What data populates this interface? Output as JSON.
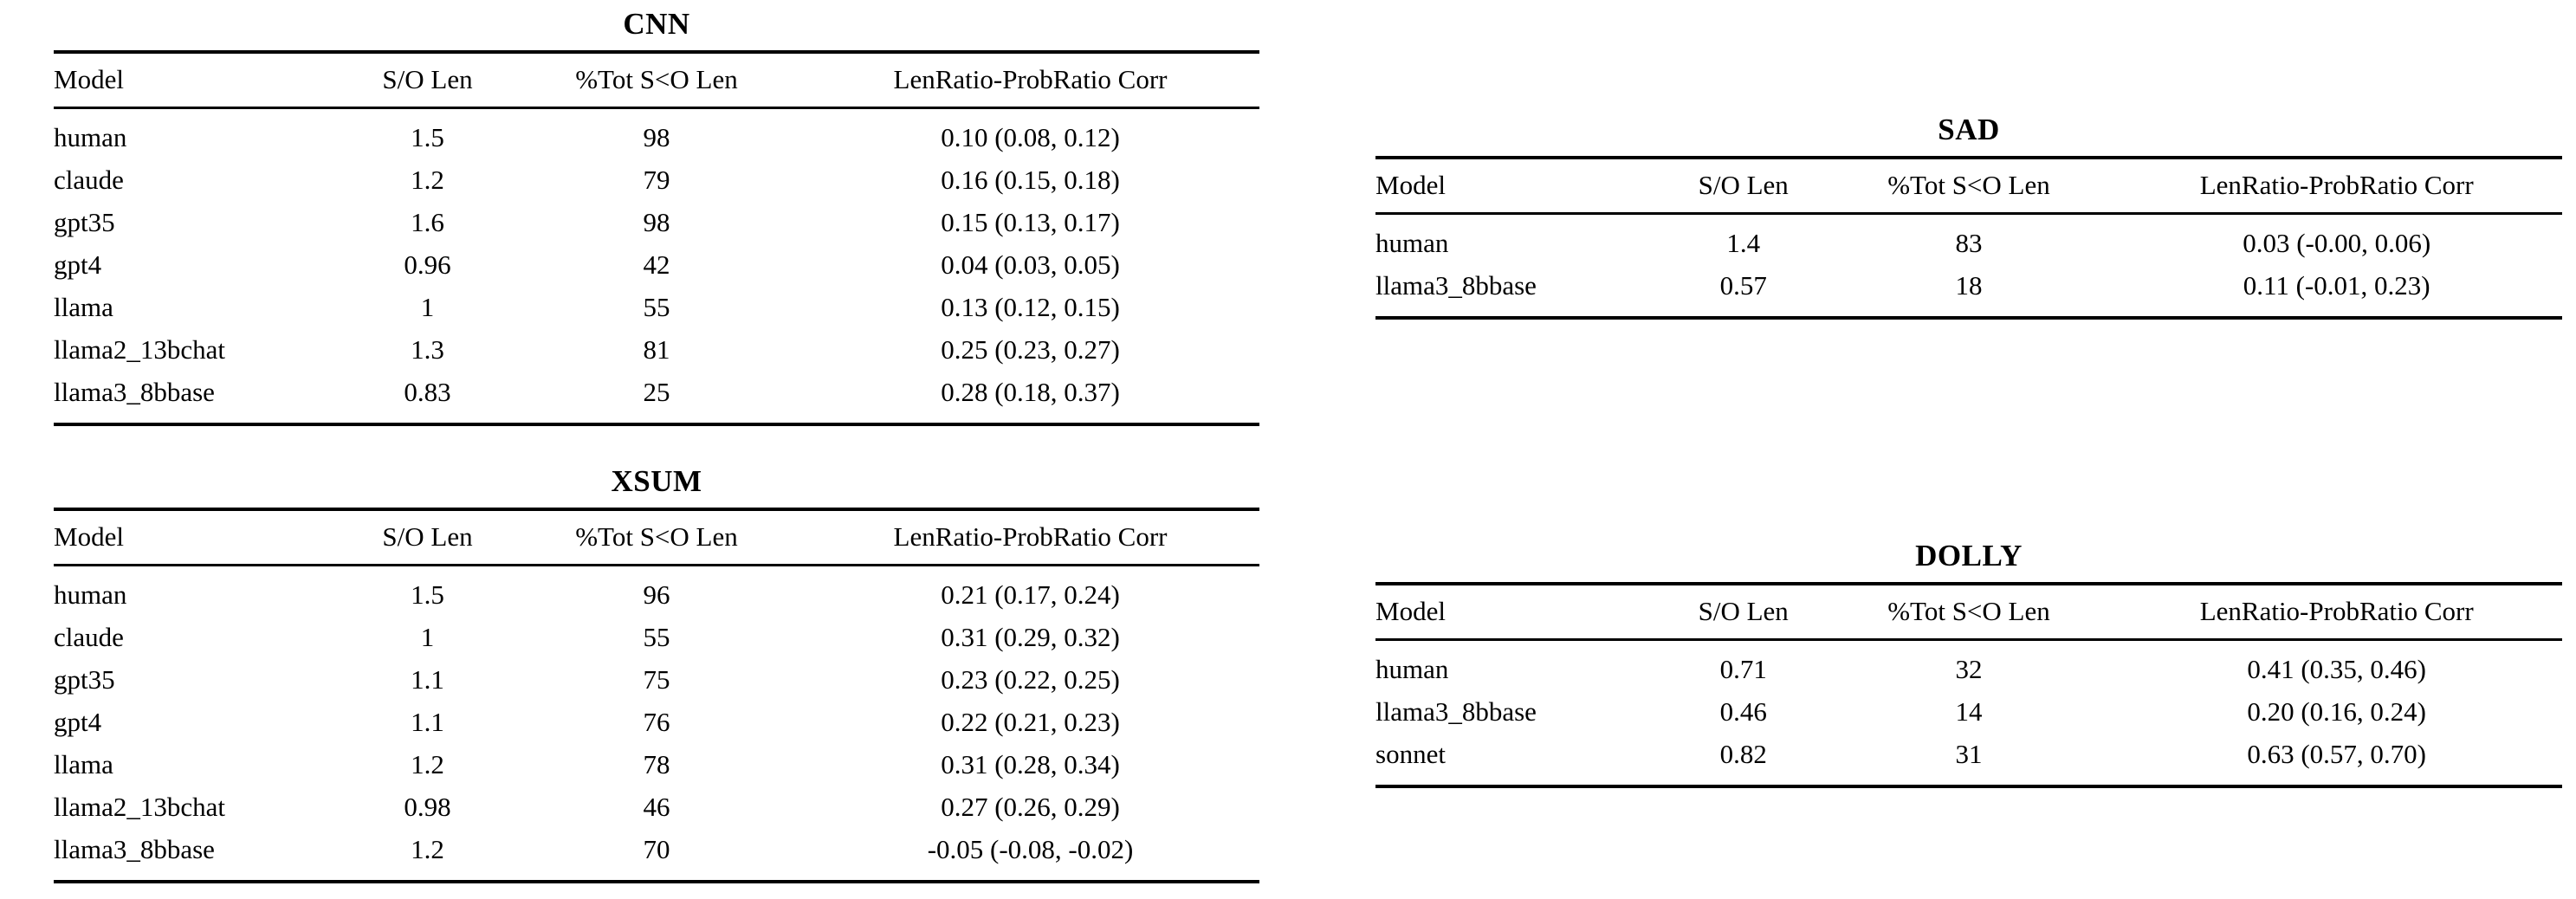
{
  "page": {
    "background_color": "#ffffff",
    "text_color": "#000000",
    "rule_color": "#000000"
  },
  "columns": [
    "Model",
    "S/O Len",
    "%Tot S<O Len",
    "LenRatio-ProbRatio Corr"
  ],
  "tables": [
    {
      "id": "cnn",
      "title": "CNN",
      "columns": [
        "Model",
        "S/O Len",
        "%Tot S<O Len",
        "LenRatio-ProbRatio Corr"
      ],
      "rows": [
        [
          "human",
          "1.5",
          "98",
          "0.10 (0.08, 0.12)"
        ],
        [
          "claude",
          "1.2",
          "79",
          "0.16 (0.15, 0.18)"
        ],
        [
          "gpt35",
          "1.6",
          "98",
          "0.15 (0.13, 0.17)"
        ],
        [
          "gpt4",
          "0.96",
          "42",
          "0.04 (0.03, 0.05)"
        ],
        [
          "llama",
          "1",
          "55",
          "0.13 (0.12, 0.15)"
        ],
        [
          "llama2_13bchat",
          "1.3",
          "81",
          "0.25 (0.23, 0.27)"
        ],
        [
          "llama3_8bbase",
          "0.83",
          "25",
          "0.28 (0.18, 0.37)"
        ]
      ]
    },
    {
      "id": "xsum",
      "title": "XSUM",
      "columns": [
        "Model",
        "S/O Len",
        "%Tot S<O Len",
        "LenRatio-ProbRatio Corr"
      ],
      "rows": [
        [
          "human",
          "1.5",
          "96",
          "0.21 (0.17, 0.24)"
        ],
        [
          "claude",
          "1",
          "55",
          "0.31 (0.29, 0.32)"
        ],
        [
          "gpt35",
          "1.1",
          "75",
          "0.23 (0.22, 0.25)"
        ],
        [
          "gpt4",
          "1.1",
          "76",
          "0.22 (0.21, 0.23)"
        ],
        [
          "llama",
          "1.2",
          "78",
          "0.31 (0.28, 0.34)"
        ],
        [
          "llama2_13bchat",
          "0.98",
          "46",
          "0.27 (0.26, 0.29)"
        ],
        [
          "llama3_8bbase",
          "1.2",
          "70",
          "-0.05 (-0.08, -0.02)"
        ]
      ]
    },
    {
      "id": "sad",
      "title": "SAD",
      "columns": [
        "Model",
        "S/O Len",
        "%Tot S<O Len",
        "LenRatio-ProbRatio Corr"
      ],
      "rows": [
        [
          "human",
          "1.4",
          "83",
          "0.03 (-0.00, 0.06)"
        ],
        [
          "llama3_8bbase",
          "0.57",
          "18",
          "0.11 (-0.01, 0.23)"
        ]
      ]
    },
    {
      "id": "dolly",
      "title": "DOLLY",
      "columns": [
        "Model",
        "S/O Len",
        "%Tot S<O Len",
        "LenRatio-ProbRatio Corr"
      ],
      "rows": [
        [
          "human",
          "0.71",
          "32",
          "0.41 (0.35, 0.46)"
        ],
        [
          "llama3_8bbase",
          "0.46",
          "14",
          "0.20 (0.16, 0.24)"
        ],
        [
          "sonnet",
          "0.82",
          "31",
          "0.63 (0.57, 0.70)"
        ]
      ]
    }
  ]
}
